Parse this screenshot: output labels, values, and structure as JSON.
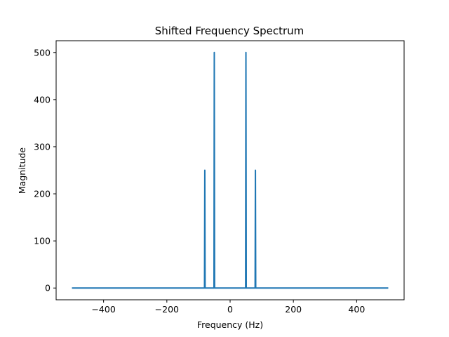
{
  "chart_data": {
    "type": "line",
    "title": "Shifted Frequency Spectrum",
    "xlabel": "Frequency (Hz)",
    "ylabel": "Magnitude",
    "xlim": [
      -550,
      550
    ],
    "ylim": [
      -25,
      525
    ],
    "xticks": [
      -400,
      -200,
      0,
      200,
      400
    ],
    "xtick_labels": [
      "−400",
      "−200",
      "0",
      "200",
      "400"
    ],
    "yticks": [
      0,
      100,
      200,
      300,
      400,
      500
    ],
    "ytick_labels": [
      "0",
      "100",
      "200",
      "300",
      "400",
      "500"
    ],
    "grid": false,
    "series": [
      {
        "color": "#1f77b4",
        "x": [
          -500,
          -81,
          -80,
          -79,
          -51,
          -50,
          -49,
          49,
          50,
          51,
          79,
          80,
          81,
          500
        ],
        "y": [
          0,
          0,
          250,
          0,
          0,
          500,
          0,
          0,
          500,
          0,
          0,
          250,
          0,
          0
        ]
      }
    ]
  }
}
